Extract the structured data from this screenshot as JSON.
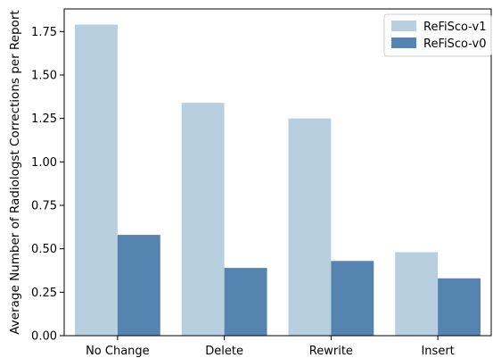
{
  "chart_data": {
    "type": "bar",
    "title": "",
    "xlabel": "",
    "ylabel": "Average Number of Radiologst Corrections per Report",
    "categories": [
      "No Change",
      "Delete",
      "Rewrite",
      "Insert"
    ],
    "series": [
      {
        "name": "ReFiSco-v1",
        "color": "#b8cfe0",
        "values": [
          1.79,
          1.34,
          1.25,
          0.48
        ]
      },
      {
        "name": "ReFiSco-v0",
        "color": "#5584b0",
        "values": [
          0.58,
          0.39,
          0.43,
          0.33
        ]
      }
    ],
    "ylim": [
      0,
      1.88
    ],
    "yticks": [
      "0.00",
      "0.25",
      "0.50",
      "0.75",
      "1.00",
      "1.25",
      "1.50",
      "1.75"
    ],
    "grid": false,
    "legend_position": "top-right"
  }
}
